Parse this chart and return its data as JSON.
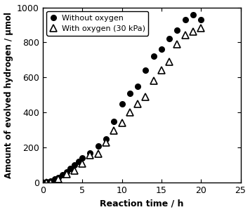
{
  "without_oxygen_x": [
    0,
    0.5,
    1,
    1.5,
    2,
    2.5,
    3,
    3.5,
    4,
    4.5,
    5,
    6,
    7,
    8,
    9,
    10,
    11,
    12,
    13,
    14,
    15,
    16,
    17,
    18,
    19,
    20
  ],
  "without_oxygen_y": [
    0,
    5,
    10,
    20,
    30,
    45,
    60,
    80,
    100,
    120,
    140,
    170,
    210,
    250,
    350,
    450,
    510,
    550,
    640,
    720,
    760,
    820,
    870,
    930,
    960,
    930
  ],
  "with_oxygen_x": [
    0,
    0.5,
    1,
    2,
    3,
    4,
    5,
    6,
    7,
    8,
    9,
    10,
    11,
    12,
    13,
    14,
    15,
    16,
    17,
    18,
    19,
    20
  ],
  "with_oxygen_y": [
    0,
    0,
    0,
    20,
    50,
    70,
    110,
    155,
    165,
    230,
    295,
    340,
    400,
    450,
    490,
    580,
    640,
    690,
    790,
    840,
    860,
    880
  ],
  "xlabel": "Reaction time / h",
  "ylabel": "Amount of evolved hydrogen / μmol",
  "xlim": [
    0,
    25
  ],
  "ylim": [
    0,
    1000
  ],
  "xticks": [
    0,
    5,
    10,
    15,
    20,
    25
  ],
  "yticks": [
    0,
    200,
    400,
    600,
    800,
    1000
  ],
  "legend_label_1": "Without oxygen",
  "legend_label_2": "With oxygen (30 kPa)",
  "figsize": [
    3.56,
    3.02
  ],
  "dpi": 100,
  "linecolor": "#000000",
  "marker_filled": "o",
  "marker_open": "^",
  "marker_size_circle": 5.5,
  "marker_size_triangle": 7.0,
  "line_width": 0
}
